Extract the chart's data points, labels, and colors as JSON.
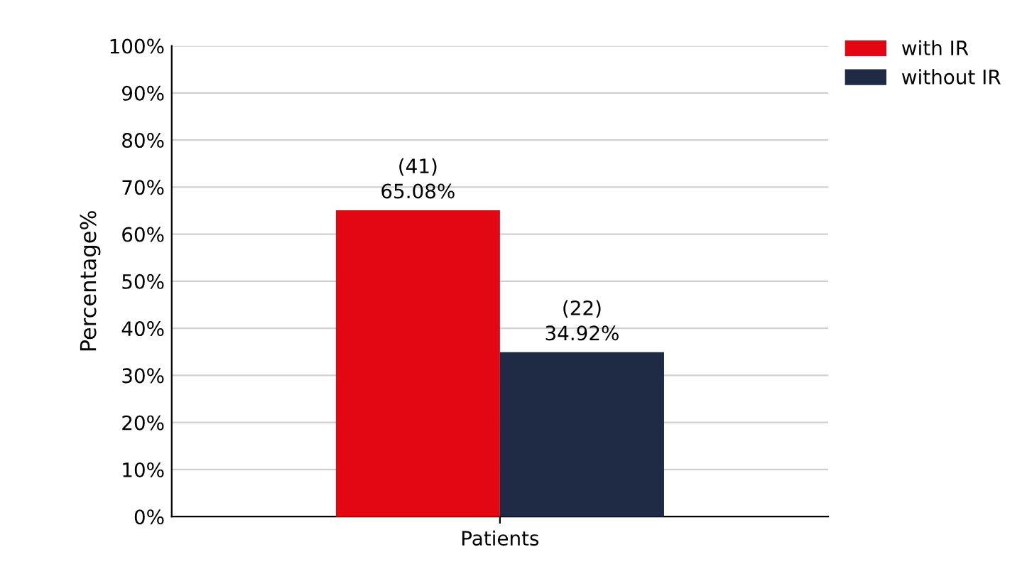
{
  "chart_data": {
    "type": "bar",
    "ylabel": "Percentage%",
    "categories": [
      "Patients"
    ],
    "series": [
      {
        "name": "with IR",
        "color": "#e30613",
        "values": [
          65.08
        ],
        "value_labels": [
          "(41)\n65.08%"
        ]
      },
      {
        "name": "without IR",
        "color": "#1f2a44",
        "values": [
          34.92
        ],
        "value_labels": [
          "(22)\n34.92%"
        ]
      }
    ],
    "ylim": [
      0,
      100
    ],
    "yticks": [
      {
        "value": 0,
        "label": "0%"
      },
      {
        "value": 10,
        "label": "10%"
      },
      {
        "value": 20,
        "label": "20%"
      },
      {
        "value": 30,
        "label": "30%"
      },
      {
        "value": 40,
        "label": "40%"
      },
      {
        "value": 50,
        "label": "50%"
      },
      {
        "value": 60,
        "label": "60%"
      },
      {
        "value": 70,
        "label": "70%"
      },
      {
        "value": 80,
        "label": "80%"
      },
      {
        "value": 90,
        "label": "90%"
      },
      {
        "value": 100,
        "label": "100%"
      }
    ],
    "grid": "y",
    "legend": "top right"
  }
}
